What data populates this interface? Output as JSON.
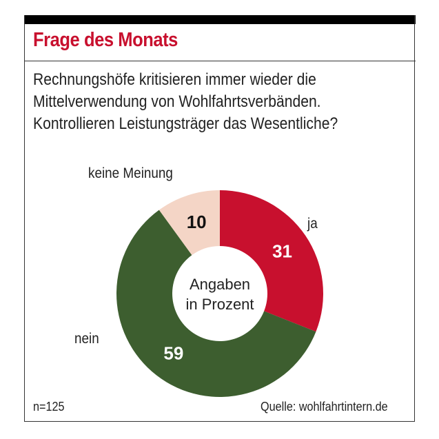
{
  "title": "Frage des Monats",
  "question": [
    "Rechnungshöfe kritisieren immer wieder die",
    "Mittelverwendung von Wohlfahrtsverbänden.",
    "Kontrollieren Leistungsträger das Wesentliche?"
  ],
  "center_label": [
    "Angaben",
    "in Prozent"
  ],
  "sample": "n=125",
  "source": "Quelle: wohlfahrtintern.de",
  "chart_data": {
    "type": "pie",
    "donut": true,
    "unit": "%",
    "slices": [
      {
        "label": "ja",
        "value": 31,
        "color": "#c8102e",
        "text_color": "#ffffff"
      },
      {
        "label": "nein",
        "value": 59,
        "color": "#3d5e2f",
        "text_color": "#ffffff"
      },
      {
        "label": "keine Meinung",
        "value": 10,
        "color": "#f4d5c6",
        "text_color": "#111111"
      }
    ]
  }
}
